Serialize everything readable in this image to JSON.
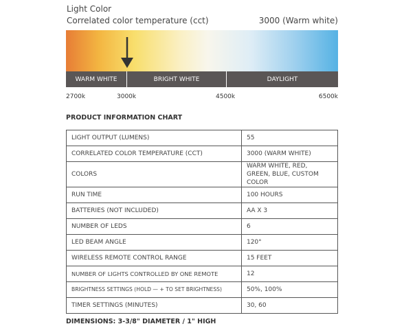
{
  "header": {
    "title": "Light Color",
    "subtitle": "Correlated color temperature (cct)",
    "current": "3000 (Warm white)"
  },
  "scale": {
    "bands": [
      "WARM WHITE",
      "BRIGHT WHITE",
      "DAYLIGHT"
    ],
    "ticks": [
      "2700k",
      "3000k",
      "4500k",
      "6500k"
    ]
  },
  "table": {
    "title": "PRODUCT INFORMATION CHART",
    "rows": [
      [
        "LIGHT OUTPUT (LUMENS)",
        "55"
      ],
      [
        "CORRELATED COLOR TEMPERATURE (CCT)",
        "3000 (WARM WHITE)"
      ],
      [
        "COLORS",
        "WARM WHITE, RED, GREEN, BLUE, CUSTOM COLOR"
      ],
      [
        "RUN TIME",
        "100 HOURS"
      ],
      [
        "BATTERIES (NOT INCLUDED)",
        "AA X 3"
      ],
      [
        "NUMBER OF LEDS",
        "6"
      ],
      [
        "LED BEAM ANGLE",
        "120°"
      ],
      [
        "WIRELESS REMOTE CONTROL RANGE",
        "15 FEET"
      ],
      [
        "NUMBER OF LIGHTS CONTROLLED BY ONE REMOTE",
        "12"
      ],
      [
        "BRIGHTNESS SETTINGS (HOLD — + TO SET BRIGHTNESS)",
        "50%, 100%"
      ],
      [
        "TIMER SETTINGS (MINUTES)",
        "30, 60"
      ]
    ]
  },
  "footer": "DIMENSIONS: 3-3/8\" DIAMETER / 1\" HIGH"
}
